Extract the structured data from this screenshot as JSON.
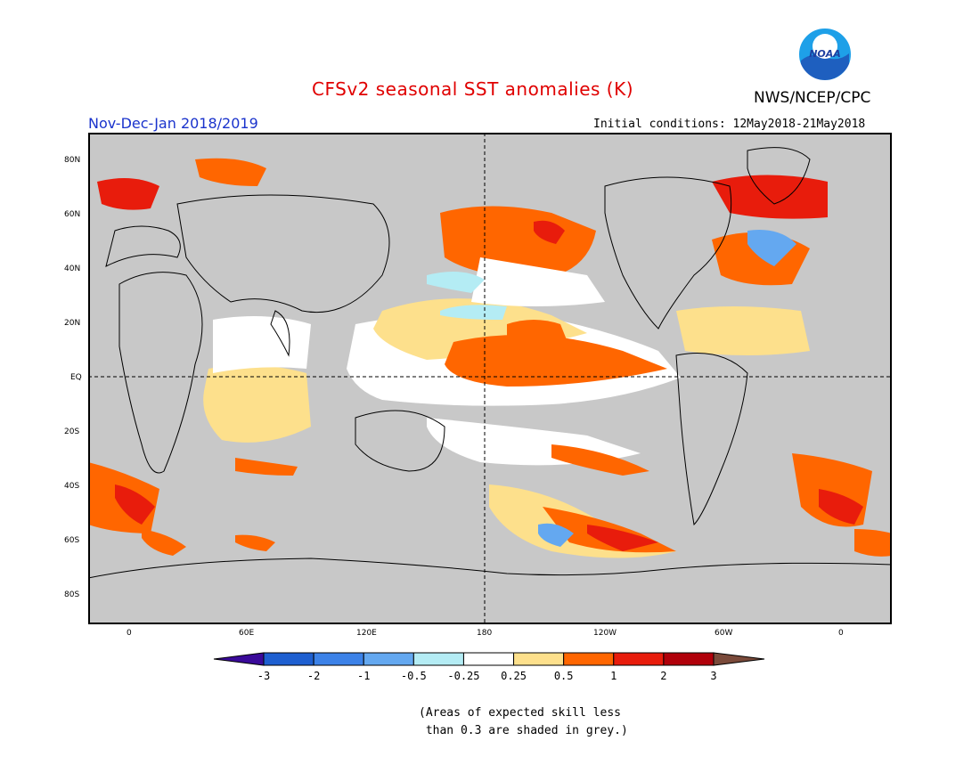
{
  "header": {
    "title": "CFSv2 seasonal SST anomalies (K)",
    "agency": "NWS/NCEP/CPC",
    "agency_logo_text": "NOAA",
    "period": "Nov-Dec-Jan 2018/2019",
    "initial_conditions": "Initial conditions: 12May2018-21May2018"
  },
  "map": {
    "latitude_labels": [
      "80N",
      "60N",
      "40N",
      "20N",
      "EQ",
      "20S",
      "40S",
      "60S",
      "80S"
    ],
    "longitude_labels": [
      "0",
      "60E",
      "120E",
      "180",
      "120W",
      "60W",
      "0"
    ],
    "skill_mask_color": "#c8c8c8",
    "ocean_color": "#ffffff"
  },
  "colorbar": {
    "tick_labels": [
      "-3",
      "-2",
      "-1",
      "-0.5",
      "-0.25",
      "0.25",
      "0.5",
      "1",
      "2",
      "3"
    ],
    "low_extreme_color": "#3a0a9a",
    "high_extreme_color": "#7a4a3a",
    "bin_colors": [
      "#1e5fd0",
      "#3c82e8",
      "#64a8f0",
      "#b4ecf4",
      "#ffffff",
      "#fde08c",
      "#ff6600",
      "#e81c0c",
      "#b0000a"
    ]
  },
  "footnote": "(Areas of expected skill less\n than 0.3 are shaded in grey.)"
}
